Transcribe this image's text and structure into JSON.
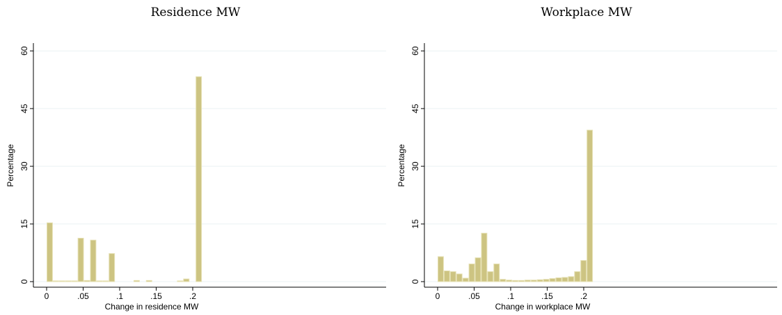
{
  "colors": {
    "bar_fill": "#cdc482",
    "bar_edge": "#e6e1b5",
    "grid": "#eaf2f3",
    "axis": "#000000"
  },
  "chart_data": [
    {
      "type": "bar",
      "title": "Residence MW",
      "xlabel": "Change in residence MW",
      "ylabel": "Percentage",
      "xlim": [
        -0.005,
        0.232
      ],
      "ylim": [
        0,
        61
      ],
      "grid": true,
      "xticks": [
        0,
        0.05,
        0.1,
        0.15,
        0.2
      ],
      "xtick_labels": [
        "0",
        ".05",
        ".1",
        ".15",
        ".2"
      ],
      "yticks": [
        0,
        15,
        30,
        45,
        60
      ],
      "ytick_labels": [
        "0",
        "15",
        "30",
        "45",
        "60"
      ],
      "bin_width": 0.0085,
      "bin_starts": [
        0.0,
        0.0085,
        0.017,
        0.0255,
        0.034,
        0.0425,
        0.051,
        0.0595,
        0.068,
        0.0765,
        0.085,
        0.1785,
        0.187,
        0.204
      ],
      "values": [
        15.3,
        0.2,
        0.2,
        0.2,
        0.2,
        11.3,
        0.3,
        10.8,
        0.2,
        0.2,
        7.3,
        0.2,
        0.7,
        53.3
      ],
      "extra_bins": [
        {
          "start": 0.119,
          "value": 0.3
        },
        {
          "start": 0.136,
          "value": 0.3
        }
      ]
    },
    {
      "type": "bar",
      "title": "Workplace MW",
      "xlabel": "Change in workplace MW",
      "ylabel": "Percentage",
      "xlim": [
        -0.005,
        0.232
      ],
      "ylim": [
        0,
        61
      ],
      "grid": true,
      "xticks": [
        0,
        0.05,
        0.1,
        0.15,
        0.2
      ],
      "xtick_labels": [
        "0",
        ".05",
        ".1",
        ".15",
        ".2"
      ],
      "yticks": [
        0,
        15,
        30,
        45,
        60
      ],
      "ytick_labels": [
        "0",
        "15",
        "30",
        "45",
        "60"
      ],
      "bin_width": 0.0085,
      "bin_starts": [
        0.0,
        0.0085,
        0.017,
        0.0255,
        0.034,
        0.0425,
        0.051,
        0.0595,
        0.068,
        0.0765,
        0.085,
        0.0935,
        0.102,
        0.1105,
        0.119,
        0.1275,
        0.136,
        0.1445,
        0.153,
        0.1615,
        0.17,
        0.1785,
        0.187,
        0.1955,
        0.204
      ],
      "values": [
        6.5,
        2.8,
        2.6,
        2.0,
        0.9,
        4.6,
        6.2,
        12.6,
        2.6,
        4.6,
        0.6,
        0.4,
        0.3,
        0.3,
        0.4,
        0.4,
        0.5,
        0.6,
        0.8,
        1.0,
        1.1,
        1.3,
        2.6,
        5.5,
        39.4
      ],
      "extra_bins": []
    }
  ]
}
